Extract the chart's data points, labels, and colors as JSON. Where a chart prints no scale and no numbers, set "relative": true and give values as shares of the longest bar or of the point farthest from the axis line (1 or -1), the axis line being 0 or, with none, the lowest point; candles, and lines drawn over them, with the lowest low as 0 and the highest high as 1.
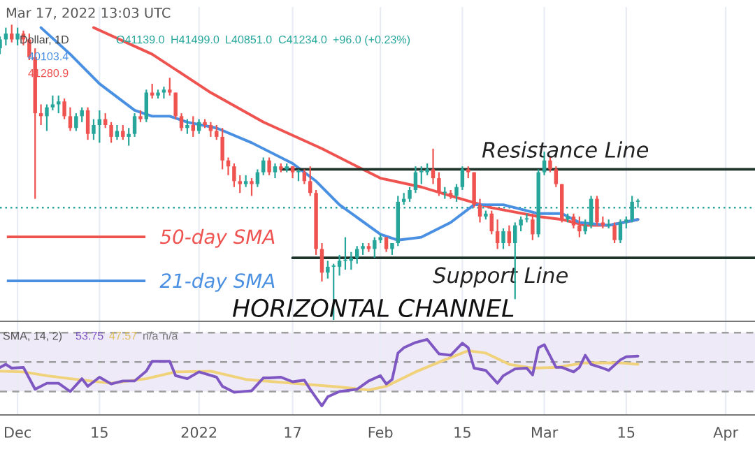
{
  "chart_data": [
    {
      "type": "candlestick",
      "relative": true,
      "grid": "x",
      "tick_labels": false,
      "legend": "bottom left",
      "xlim": [
        "2021-11-28",
        "2022-04-06"
      ],
      "xticks": [
        {
          "value": "2021-12-01",
          "label": null
        },
        {
          "value": "2021-12-15",
          "label": null
        },
        {
          "value": "2022-01-01",
          "label": null
        },
        {
          "value": "2022-01-17",
          "label": null
        },
        {
          "value": "2022-02-01",
          "label": null
        },
        {
          "value": "2022-02-15",
          "label": null
        },
        {
          "value": "2022-03-01",
          "label": null
        },
        {
          "value": "2022-03-15",
          "label": null
        },
        {
          "value": "2022-04-01",
          "label": null
        }
      ],
      "colors": [
        "#26a69a",
        "#26a69a",
        "#ef5350",
        "#26a69a",
        "#ef5350",
        "#ef5350",
        "#ef5350",
        "#ef5350",
        "#26a69a",
        "#26a69a",
        "#26a69a",
        "#ef5350",
        "#ef5350",
        "#26a69a",
        "#26a69a",
        "#ef5350",
        "#26a69a",
        "#26a69a",
        "#ef5350",
        "#ef5350",
        "#26a69a",
        "#ef5350",
        "#26a69a",
        "#26a69a",
        "#ef5350",
        "#26a69a",
        "#ef5350",
        "#26a69a",
        "#26a69a",
        "#ef5350",
        "#ef5350",
        "#ef5350",
        "#26a69a",
        "#ef5350",
        "#26a69a",
        "#ef5350",
        "#ef5350",
        "#ef5350",
        "#ef5350",
        "#ef5350",
        "#ef5350",
        "#ef5350",
        "#26a69a",
        "#ef5350",
        "#26a69a",
        "#26a69a",
        "#ef5350",
        "#26a69a",
        "#ef5350",
        "#26a69a",
        "#ef5350",
        "#26a69a",
        "#ef5350",
        "#ef5350",
        "#ef5350",
        "#ef5350",
        "#26a69a",
        "#26a69a",
        "#26a69a",
        "#26a69a",
        "#26a69a",
        "#26a69a",
        "#26a69a",
        "#ef5350",
        "#26a69a",
        "#26a69a",
        "#ef5350",
        "#26a69a",
        "#26a69a",
        "#26a69a",
        "#26a69a",
        "#26a69a",
        "#26a69a",
        "#26a69a",
        "#ef5350",
        "#ef5350",
        "#26a69a",
        "#ef5350",
        "#26a69a",
        "#26a69a",
        "#ef5350",
        "#ef5350",
        "#ef5350",
        "#26a69a",
        "#ef5350",
        "#ef5350",
        "#26a69a",
        "#ef5350",
        "#26a69a",
        "#26a69a",
        "#26a69a",
        "#ef5350",
        "#26a69a",
        "#26a69a",
        "#ef5350",
        "#ef5350",
        "#ef5350",
        "#26a69a",
        "#ef5350",
        "#ef5350",
        "#26a69a",
        "#26a69a",
        "#ef5350",
        "#ef5350",
        "#26a69a",
        "#ef5350",
        "#26a69a",
        "#26a69a",
        "#26a69a",
        "#26a69a"
      ],
      "x": [
        "2021-11-28",
        "2021-11-29",
        "2021-11-30",
        "2021-12-01",
        "2021-12-02",
        "2021-12-03",
        "2021-12-04",
        "2021-12-05",
        "2021-12-06",
        "2021-12-07",
        "2021-12-08",
        "2021-12-09",
        "2021-12-10",
        "2021-12-11",
        "2021-12-12",
        "2021-12-13",
        "2021-12-14",
        "2021-12-15",
        "2021-12-16",
        "2021-12-17",
        "2021-12-18",
        "2021-12-19",
        "2021-12-20",
        "2021-12-21",
        "2021-12-22",
        "2021-12-23",
        "2021-12-24",
        "2021-12-25",
        "2021-12-26",
        "2021-12-27",
        "2021-12-28",
        "2021-12-29",
        "2021-12-30",
        "2021-12-31",
        "2022-01-01",
        "2022-01-02",
        "2022-01-03",
        "2022-01-04",
        "2022-01-05",
        "2022-01-06",
        "2022-01-07",
        "2022-01-08",
        "2022-01-09",
        "2022-01-10",
        "2022-01-11",
        "2022-01-12",
        "2022-01-13",
        "2022-01-14",
        "2022-01-15",
        "2022-01-16",
        "2022-01-17",
        "2022-01-18",
        "2022-01-19",
        "2022-01-20",
        "2022-01-21",
        "2022-01-22",
        "2022-01-23",
        "2022-01-24",
        "2022-01-25",
        "2022-01-26",
        "2022-01-27",
        "2022-01-28",
        "2022-01-29",
        "2022-01-30",
        "2022-01-31",
        "2022-02-01",
        "2022-02-02",
        "2022-02-03",
        "2022-02-04",
        "2022-02-05",
        "2022-02-06",
        "2022-02-07",
        "2022-02-08",
        "2022-02-09",
        "2022-02-10",
        "2022-02-11",
        "2022-02-12",
        "2022-02-13",
        "2022-02-14",
        "2022-02-15",
        "2022-02-16",
        "2022-02-17",
        "2022-02-18",
        "2022-02-19",
        "2022-02-20",
        "2022-02-21",
        "2022-02-22",
        "2022-02-23",
        "2022-02-24",
        "2022-02-25",
        "2022-02-26",
        "2022-02-27",
        "2022-02-28",
        "2022-03-01",
        "2022-03-02",
        "2022-03-03",
        "2022-03-04",
        "2022-03-05",
        "2022-03-06",
        "2022-03-07",
        "2022-03-08",
        "2022-03-09",
        "2022-03-10",
        "2022-03-11",
        "2022-03-12",
        "2022-03-13",
        "2022-03-14",
        "2022-03-15",
        "2022-03-16",
        "2022-03-17"
      ],
      "ohlc": [
        [
          0.92,
          0.96,
          0.9,
          0.95
        ],
        [
          0.95,
          0.99,
          0.93,
          0.97
        ],
        [
          0.97,
          1.0,
          0.94,
          0.95
        ],
        [
          0.95,
          0.99,
          0.93,
          0.97
        ],
        [
          0.97,
          0.98,
          0.93,
          0.95
        ],
        [
          0.95,
          0.97,
          0.88,
          0.89
        ],
        [
          0.89,
          0.92,
          0.41,
          0.7
        ],
        [
          0.7,
          0.73,
          0.66,
          0.69
        ],
        [
          0.69,
          0.73,
          0.64,
          0.72
        ],
        [
          0.72,
          0.76,
          0.71,
          0.73
        ],
        [
          0.73,
          0.76,
          0.7,
          0.74
        ],
        [
          0.74,
          0.75,
          0.68,
          0.69
        ],
        [
          0.69,
          0.72,
          0.64,
          0.65
        ],
        [
          0.65,
          0.7,
          0.64,
          0.69
        ],
        [
          0.69,
          0.72,
          0.67,
          0.71
        ],
        [
          0.71,
          0.72,
          0.61,
          0.63
        ],
        [
          0.63,
          0.68,
          0.61,
          0.66
        ],
        [
          0.66,
          0.71,
          0.6,
          0.68
        ],
        [
          0.68,
          0.7,
          0.65,
          0.66
        ],
        [
          0.66,
          0.67,
          0.6,
          0.62
        ],
        [
          0.62,
          0.66,
          0.61,
          0.64
        ],
        [
          0.64,
          0.66,
          0.61,
          0.62
        ],
        [
          0.62,
          0.65,
          0.59,
          0.63
        ],
        [
          0.63,
          0.7,
          0.62,
          0.69
        ],
        [
          0.69,
          0.71,
          0.67,
          0.68
        ],
        [
          0.68,
          0.78,
          0.67,
          0.77
        ],
        [
          0.77,
          0.8,
          0.75,
          0.76
        ],
        [
          0.76,
          0.78,
          0.75,
          0.77
        ],
        [
          0.77,
          0.79,
          0.75,
          0.78
        ],
        [
          0.78,
          0.82,
          0.76,
          0.77
        ],
        [
          0.77,
          0.77,
          0.68,
          0.69
        ],
        [
          0.69,
          0.7,
          0.64,
          0.65
        ],
        [
          0.65,
          0.68,
          0.63,
          0.66
        ],
        [
          0.66,
          0.69,
          0.62,
          0.64
        ],
        [
          0.64,
          0.68,
          0.63,
          0.67
        ],
        [
          0.67,
          0.68,
          0.65,
          0.66
        ],
        [
          0.66,
          0.67,
          0.62,
          0.64
        ],
        [
          0.64,
          0.66,
          0.61,
          0.62
        ],
        [
          0.62,
          0.65,
          0.51,
          0.54
        ],
        [
          0.54,
          0.55,
          0.49,
          0.52
        ],
        [
          0.52,
          0.53,
          0.45,
          0.47
        ],
        [
          0.47,
          0.49,
          0.43,
          0.46
        ],
        [
          0.46,
          0.49,
          0.45,
          0.47
        ],
        [
          0.47,
          0.48,
          0.42,
          0.46
        ],
        [
          0.46,
          0.51,
          0.45,
          0.5
        ],
        [
          0.5,
          0.55,
          0.49,
          0.54
        ],
        [
          0.54,
          0.55,
          0.49,
          0.5
        ],
        [
          0.5,
          0.53,
          0.48,
          0.52
        ],
        [
          0.52,
          0.53,
          0.5,
          0.51
        ],
        [
          0.51,
          0.53,
          0.5,
          0.52
        ],
        [
          0.52,
          0.52,
          0.48,
          0.5
        ],
        [
          0.5,
          0.51,
          0.47,
          0.5
        ],
        [
          0.5,
          0.51,
          0.46,
          0.47
        ],
        [
          0.47,
          0.52,
          0.42,
          0.43
        ],
        [
          0.43,
          0.44,
          0.22,
          0.24
        ],
        [
          0.24,
          0.26,
          0.13,
          0.16
        ],
        [
          0.16,
          0.2,
          0.14,
          0.18
        ],
        [
          0.18,
          0.19,
          0.0,
          0.18
        ],
        [
          0.18,
          0.22,
          0.15,
          0.2
        ],
        [
          0.2,
          0.28,
          0.17,
          0.2
        ],
        [
          0.2,
          0.23,
          0.17,
          0.21
        ],
        [
          0.21,
          0.25,
          0.19,
          0.24
        ],
        [
          0.24,
          0.26,
          0.22,
          0.25
        ],
        [
          0.25,
          0.26,
          0.23,
          0.24
        ],
        [
          0.24,
          0.28,
          0.21,
          0.27
        ],
        [
          0.27,
          0.29,
          0.26,
          0.28
        ],
        [
          0.28,
          0.28,
          0.23,
          0.24
        ],
        [
          0.24,
          0.26,
          0.22,
          0.26
        ],
        [
          0.26,
          0.42,
          0.25,
          0.4
        ],
        [
          0.4,
          0.43,
          0.39,
          0.41
        ],
        [
          0.41,
          0.45,
          0.4,
          0.44
        ],
        [
          0.44,
          0.52,
          0.43,
          0.5
        ],
        [
          0.5,
          0.52,
          0.46,
          0.5
        ],
        [
          0.5,
          0.53,
          0.49,
          0.51
        ],
        [
          0.51,
          0.58,
          0.46,
          0.48
        ],
        [
          0.48,
          0.5,
          0.42,
          0.43
        ],
        [
          0.43,
          0.45,
          0.41,
          0.43
        ],
        [
          0.43,
          0.44,
          0.41,
          0.42
        ],
        [
          0.42,
          0.46,
          0.4,
          0.45
        ],
        [
          0.45,
          0.52,
          0.44,
          0.51
        ],
        [
          0.51,
          0.52,
          0.48,
          0.5
        ],
        [
          0.5,
          0.5,
          0.38,
          0.39
        ],
        [
          0.39,
          0.41,
          0.33,
          0.35
        ],
        [
          0.35,
          0.37,
          0.34,
          0.36
        ],
        [
          0.36,
          0.37,
          0.29,
          0.3
        ],
        [
          0.3,
          0.34,
          0.24,
          0.26
        ],
        [
          0.26,
          0.31,
          0.24,
          0.3
        ],
        [
          0.3,
          0.32,
          0.25,
          0.26
        ],
        [
          0.26,
          0.33,
          0.07,
          0.32
        ],
        [
          0.32,
          0.35,
          0.3,
          0.34
        ],
        [
          0.34,
          0.36,
          0.33,
          0.34
        ],
        [
          0.34,
          0.36,
          0.27,
          0.29
        ],
        [
          0.29,
          0.51,
          0.28,
          0.5
        ],
        [
          0.5,
          0.57,
          0.49,
          0.54
        ],
        [
          0.54,
          0.55,
          0.5,
          0.51
        ],
        [
          0.51,
          0.52,
          0.45,
          0.46
        ],
        [
          0.46,
          0.46,
          0.33,
          0.34
        ],
        [
          0.34,
          0.36,
          0.33,
          0.35
        ],
        [
          0.35,
          0.36,
          0.31,
          0.32
        ],
        [
          0.32,
          0.35,
          0.28,
          0.3
        ],
        [
          0.3,
          0.34,
          0.29,
          0.32
        ],
        [
          0.32,
          0.42,
          0.31,
          0.41
        ],
        [
          0.41,
          0.42,
          0.32,
          0.33
        ],
        [
          0.33,
          0.35,
          0.31,
          0.32
        ],
        [
          0.32,
          0.34,
          0.31,
          0.32
        ],
        [
          0.32,
          0.33,
          0.26,
          0.27
        ],
        [
          0.27,
          0.34,
          0.26,
          0.33
        ],
        [
          0.33,
          0.35,
          0.31,
          0.34
        ],
        [
          0.34,
          0.42,
          0.33,
          0.4
        ],
        [
          0.4,
          0.41,
          0.38,
          0.4
        ]
      ],
      "series": [
        {
          "type": "line",
          "name": "50-day SMA",
          "color": "#ef5350",
          "x": [
            "2021-12-14",
            "2021-12-24",
            "2022-01-03",
            "2022-01-12",
            "2022-01-22",
            "2022-02-01",
            "2022-02-08",
            "2022-02-13",
            "2022-02-20",
            "2022-02-28",
            "2022-03-04",
            "2022-03-08",
            "2022-03-12",
            "2022-03-17"
          ],
          "values": [
            0.99,
            0.9,
            0.77,
            0.67,
            0.58,
            0.48,
            0.45,
            0.42,
            0.38,
            0.35,
            0.34,
            0.32,
            0.32,
            0.34
          ]
        },
        {
          "type": "line",
          "name": "21-day SMA",
          "color": "#4a90e2",
          "x": [
            "2021-12-05",
            "2021-12-10",
            "2021-12-15",
            "2021-12-21",
            "2021-12-24",
            "2021-12-27",
            "2021-12-30",
            "2022-01-04",
            "2022-01-10",
            "2022-01-17",
            "2022-01-21",
            "2022-01-25",
            "2022-02-01",
            "2022-02-04",
            "2022-02-08",
            "2022-02-13",
            "2022-02-17",
            "2022-02-22",
            "2022-02-28",
            "2022-03-04",
            "2022-03-07",
            "2022-03-12",
            "2022-03-17"
          ],
          "values": [
            0.99,
            0.9,
            0.8,
            0.71,
            0.69,
            0.69,
            0.67,
            0.65,
            0.6,
            0.53,
            0.47,
            0.39,
            0.29,
            0.27,
            0.28,
            0.33,
            0.39,
            0.39,
            0.36,
            0.36,
            0.33,
            0.32,
            0.34
          ]
        },
        {
          "type": "line",
          "name": "Resistance Line",
          "color": "#1e3329",
          "x": [
            "2022-01-15",
            "2022-04-06"
          ],
          "values": [
            0.51,
            0.51
          ]
        },
        {
          "type": "line",
          "name": "Support Line",
          "color": "#1e3329",
          "x": [
            "2022-01-17",
            "2022-04-06"
          ],
          "values": [
            0.21,
            0.21
          ]
        }
      ],
      "ref_lines": [
        {
          "axis": "y",
          "value": 0.38,
          "color": "#26a69a",
          "line_style": "dotted"
        }
      ],
      "annotations": [
        "Mar 17, 2022 13:03 UTC",
        "Dollar, 1D",
        "O41139.0",
        "H41499.0",
        "L40851.0",
        "C41234.0",
        "+96.0 (+0.23%)",
        "40103.4",
        "41280.9",
        "HORIZONTAL CHANNEL"
      ]
    },
    {
      "type": "line",
      "relative": true,
      "grid": "x",
      "tick_labels": "x",
      "xlim": [
        "2021-11-28",
        "2022-04-06"
      ],
      "xticks": [
        {
          "value": "2021-12-01",
          "label": "Dec"
        },
        {
          "value": "2021-12-15",
          "label": "15"
        },
        {
          "value": "2022-01-01",
          "label": "2022"
        },
        {
          "value": "2022-01-17",
          "label": "17"
        },
        {
          "value": "2022-02-01",
          "label": "Feb"
        },
        {
          "value": "2022-02-15",
          "label": "15"
        },
        {
          "value": "2022-03-01",
          "label": "Mar"
        },
        {
          "value": "2022-03-15",
          "label": "15"
        },
        {
          "value": "2022-04-01",
          "label": "Apr"
        }
      ],
      "series": [
        {
          "color": "#f0d27a",
          "x": [
            "2021-11-28",
            "2021-12-02",
            "2021-12-06",
            "2021-12-10",
            "2021-12-17",
            "2021-12-23",
            "2021-12-28",
            "2022-01-03",
            "2022-01-09",
            "2022-01-17",
            "2022-01-25",
            "2022-01-30",
            "2022-02-02",
            "2022-02-07",
            "2022-02-12",
            "2022-02-16",
            "2022-02-19",
            "2022-02-23",
            "2022-02-27",
            "2022-03-03",
            "2022-03-08",
            "2022-03-14",
            "2022-03-17"
          ],
          "values": [
            0.58,
            0.57,
            0.52,
            0.48,
            0.42,
            0.48,
            0.57,
            0.58,
            0.47,
            0.42,
            0.37,
            0.33,
            0.38,
            0.57,
            0.73,
            0.85,
            0.82,
            0.67,
            0.62,
            0.63,
            0.69,
            0.69,
            0.67
          ]
        },
        {
          "color": "#7e57c2",
          "x": [
            "2021-11-28",
            "2021-11-29",
            "2021-11-30",
            "2021-12-02",
            "2021-12-04",
            "2021-12-06",
            "2021-12-08",
            "2021-12-10",
            "2021-12-12",
            "2021-12-13",
            "2021-12-15",
            "2021-12-17",
            "2021-12-19",
            "2021-12-21",
            "2021-12-23",
            "2021-12-24",
            "2021-12-25",
            "2021-12-27",
            "2021-12-28",
            "2021-12-30",
            "2022-01-01",
            "2022-01-04",
            "2022-01-05",
            "2022-01-07",
            "2022-01-10",
            "2022-01-12",
            "2022-01-13",
            "2022-01-15",
            "2022-01-17",
            "2022-01-19",
            "2022-01-20",
            "2022-01-22",
            "2022-01-23",
            "2022-01-25",
            "2022-01-28",
            "2022-01-30",
            "2022-02-01",
            "2022-02-02",
            "2022-02-03",
            "2022-02-04",
            "2022-02-05",
            "2022-02-07",
            "2022-02-09",
            "2022-02-11",
            "2022-02-13",
            "2022-02-15",
            "2022-02-16",
            "2022-02-17",
            "2022-02-19",
            "2022-02-21",
            "2022-02-22",
            "2022-02-24",
            "2022-02-26",
            "2022-02-27",
            "2022-02-28",
            "2022-03-01",
            "2022-03-03",
            "2022-03-04",
            "2022-03-06",
            "2022-03-07",
            "2022-03-08",
            "2022-03-09",
            "2022-03-11",
            "2022-03-12",
            "2022-03-14",
            "2022-03-15",
            "2022-03-17"
          ],
          "values": [
            0.63,
            0.67,
            0.62,
            0.63,
            0.34,
            0.42,
            0.42,
            0.31,
            0.48,
            0.38,
            0.5,
            0.41,
            0.45,
            0.45,
            0.58,
            0.71,
            0.71,
            0.71,
            0.52,
            0.48,
            0.57,
            0.5,
            0.38,
            0.3,
            0.32,
            0.49,
            0.49,
            0.5,
            0.44,
            0.46,
            0.34,
            0.12,
            0.24,
            0.31,
            0.34,
            0.45,
            0.52,
            0.41,
            0.47,
            0.82,
            0.89,
            0.96,
            1.0,
            0.81,
            0.79,
            0.95,
            0.89,
            0.62,
            0.59,
            0.42,
            0.52,
            0.61,
            0.62,
            0.53,
            0.89,
            0.93,
            0.63,
            0.63,
            0.57,
            0.63,
            0.79,
            0.67,
            0.62,
            0.59,
            0.73,
            0.77,
            0.78
          ]
        }
      ],
      "bands": [
        {
          "axis": "y",
          "from": 0.31,
          "to": 1.09,
          "color": "#efeaf8"
        }
      ],
      "ref_lines": [
        {
          "axis": "y",
          "value": 1.09,
          "color": "#9e9e9e",
          "line_style": "dashed"
        },
        {
          "axis": "y",
          "value": 0.7,
          "color": "#9e9e9e",
          "line_style": "dashed"
        },
        {
          "axis": "y",
          "value": 0.31,
          "color": "#9e9e9e",
          "line_style": "dashed"
        }
      ],
      "annotations": [
        "SMA, 14, 2)",
        "53.75",
        "47.57",
        "n/a",
        "n/a"
      ]
    }
  ]
}
